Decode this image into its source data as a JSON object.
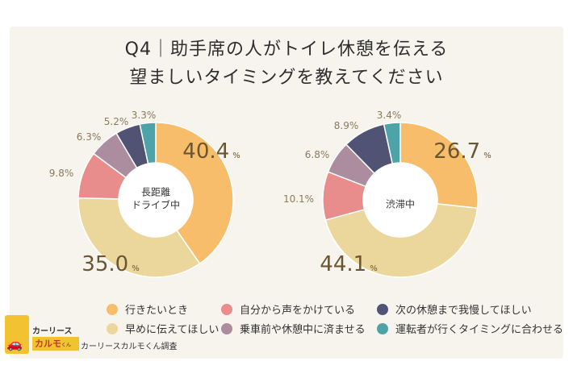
{
  "title": {
    "line1": "Q4｜助手席の人がトイレ休憩を伝える",
    "line2": "望ましいタイミングを教えてください"
  },
  "colors": {
    "card_bg": "#f7f4ee",
    "series": [
      "#f7bd6a",
      "#ebd79c",
      "#e88c8c",
      "#ac8d9f",
      "#505373",
      "#4ea3a8"
    ],
    "value_large": "#6b5632",
    "value_small": "#8a7a5c"
  },
  "legend": [
    {
      "label": "行きたいとき",
      "color_index": 0
    },
    {
      "label": "早めに伝えてほしい",
      "color_index": 1
    },
    {
      "label": "自分から声をかけている",
      "color_index": 2
    },
    {
      "label": "乗車前や休憩中に済ませる",
      "color_index": 3
    },
    {
      "label": "次の休憩まで我慢してほしい",
      "color_index": 4
    },
    {
      "label": "運転者が行くタイミングに合わせる",
      "color_index": 5
    }
  ],
  "chart_data": [
    {
      "type": "pie",
      "donut": true,
      "center_label": [
        "長距離",
        "ドライブ中"
      ],
      "categories": [
        "行きたいとき",
        "早めに伝えてほしい",
        "自分から声をかけている",
        "乗車前や休憩中に済ませる",
        "次の休憩まで我慢してほしい",
        "運転者が行くタイミングに合わせる"
      ],
      "values": [
        40.4,
        35.0,
        9.8,
        6.3,
        5.2,
        3.3
      ],
      "value_labels": [
        "40.4",
        "35.0",
        "9.8%",
        "6.3%",
        "5.2%",
        "3.3%"
      ],
      "unit": "%"
    },
    {
      "type": "pie",
      "donut": true,
      "center_label": [
        "渋滞中"
      ],
      "categories": [
        "行きたいとき",
        "早めに伝えてほしい",
        "自分から声をかけている",
        "乗車前や休憩中に済ませる",
        "次の休憩まで我慢してほしい",
        "運転者が行くタイミングに合わせる"
      ],
      "values": [
        26.7,
        44.1,
        10.1,
        6.8,
        8.9,
        3.4
      ],
      "value_labels": [
        "26.7",
        "44.1",
        "10.1%",
        "6.8%",
        "8.9%",
        "3.4%"
      ],
      "unit": "%"
    }
  ],
  "logo": {
    "top_text": "カーリース",
    "bottom_text": "カルモ",
    "bottom_suffix": "くん"
  },
  "source": "カーリースカルモくん調査"
}
